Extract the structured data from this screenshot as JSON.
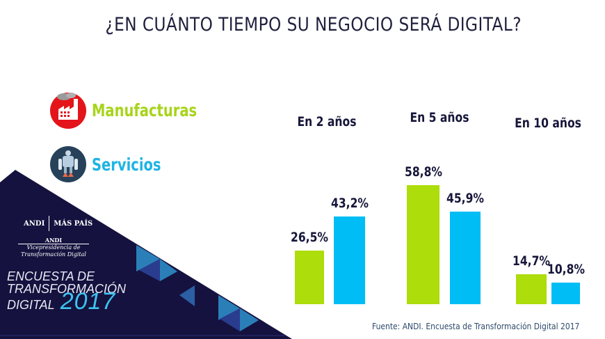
{
  "title": "¿EN CUÁNTO TIEMPO SU NEGOCIO SERÁ DIGITAL?",
  "legend": [
    {
      "label": "Manufacturas",
      "icon": "factory-icon",
      "color": "#a8d41c",
      "icon_bg": "#e3151b"
    },
    {
      "label": "Servicios",
      "icon": "robot-icon",
      "color": "#1fb4e3",
      "icon_bg": "#27415a"
    }
  ],
  "branding": {
    "logo_left": "ANDI",
    "logo_right": "MÁS PAÍS",
    "sub_org": "ANDI",
    "sub_line1": "Vicepresidencia de",
    "sub_line2": "Transformación Digital",
    "survey_line1": "ENCUESTA DE",
    "survey_line2": "TRANSFORMACIÓN",
    "survey_line3": "DIGITAL",
    "survey_year": "2017"
  },
  "source": "Fuente: ANDI. Encuesta de Transformación Digital 2017",
  "colors": {
    "navy": "#15123f",
    "manufacturas": "#addd0a",
    "servicios": "#00bdf5",
    "text_dark": "#16163a"
  },
  "chart_data": {
    "type": "bar",
    "title": "¿EN CUÁNTO TIEMPO SU NEGOCIO SERÁ DIGITAL?",
    "categories": [
      "En 2 años",
      "En 5 años",
      "En 10 años"
    ],
    "series": [
      {
        "name": "Manufacturas",
        "values": [
          26.5,
          58.8,
          14.7
        ],
        "labels": [
          "26,5%",
          "58,8%",
          "14,7%"
        ]
      },
      {
        "name": "Servicios",
        "values": [
          43.2,
          45.9,
          10.8
        ],
        "labels": [
          "43,2%",
          "45,9%",
          "10,8%"
        ]
      }
    ],
    "xlabel": "",
    "ylabel": "",
    "unit": "%",
    "grid": false,
    "legend_position": "left"
  }
}
